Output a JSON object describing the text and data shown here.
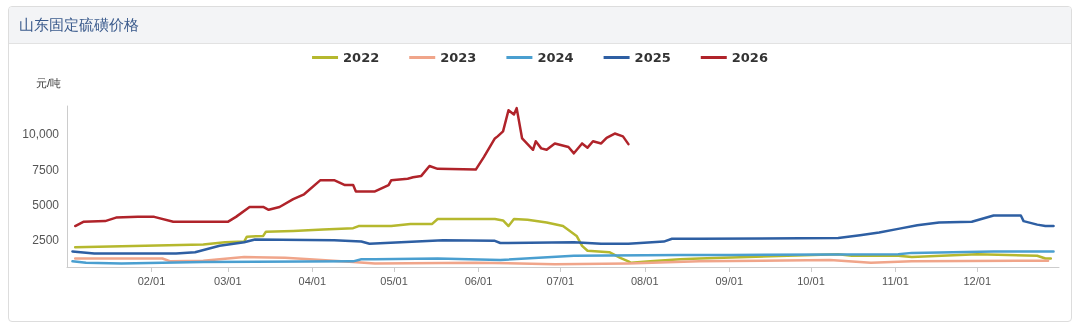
{
  "chart_data": {
    "type": "line",
    "title": "山东固定硫磺价格",
    "ylabel": "元/吨",
    "xlim": [
      "--01-01",
      "--12-31"
    ],
    "xticks": [
      {
        "value": "--02-01",
        "label": "02/01"
      },
      {
        "value": "--03-01",
        "label": "03/01"
      },
      {
        "value": "--04-01",
        "label": "04/01"
      },
      {
        "value": "--05-01",
        "label": "05/01"
      },
      {
        "value": "--06-01",
        "label": "06/01"
      },
      {
        "value": "--07-01",
        "label": "07/01"
      },
      {
        "value": "--08-01",
        "label": "08/01"
      },
      {
        "value": "--09-01",
        "label": "09/01"
      },
      {
        "value": "--10-01",
        "label": "10/01"
      },
      {
        "value": "--11-01",
        "label": "11/01"
      },
      {
        "value": "--12-01",
        "label": "12/01"
      }
    ],
    "ylim": [
      600,
      12000
    ],
    "yticks": [
      2500,
      5000,
      7500,
      {
        "value": 10000,
        "label": "10,000"
      }
    ],
    "grid": false,
    "legend": "top",
    "marker": "none",
    "line_style": "solid",
    "series": [
      {
        "name": "2022",
        "color": "#b5b82e",
        "x": [
          "--01-04",
          "--02-20",
          "--02-28",
          "--03-07",
          "--03-08",
          "--03-14",
          "--03-15",
          "--03-25",
          "--04-05",
          "--04-16",
          "--04-18",
          "--04-30",
          "--05-07",
          "--05-15",
          "--05-17",
          "--06-07",
          "--06-10",
          "--06-12",
          "--06-14",
          "--06-19",
          "--06-26",
          "--07-02",
          "--07-07",
          "--07-09",
          "--07-11",
          "--07-19",
          "--07-23",
          "--07-26",
          "--07-27",
          "--08-03",
          "--08-14",
          "--08-21",
          "--10-11",
          "--10-16",
          "--11-02",
          "--11-07",
          "--12-01",
          "--12-23",
          "--12-26",
          "--12-28"
        ],
        "values": [
          2000,
          2200,
          2350,
          2400,
          2750,
          2800,
          3100,
          3150,
          3250,
          3350,
          3500,
          3500,
          3650,
          3650,
          4000,
          4000,
          3900,
          3500,
          4000,
          3950,
          3750,
          3500,
          2800,
          2100,
          1750,
          1650,
          1250,
          1000,
          900,
          1000,
          1150,
          1200,
          1500,
          1400,
          1400,
          1300,
          1500,
          1400,
          1200,
          1200
        ]
      },
      {
        "name": "2023",
        "color": "#f0a58a",
        "x": [
          "--01-04",
          "--02-05",
          "--02-08",
          "--02-20",
          "--03-07",
          "--03-22",
          "--03-31",
          "--04-16",
          "--04-24",
          "--05-31",
          "--06-29",
          "--07-26",
          "--08-21",
          "--10-08",
          "--10-23",
          "--11-07",
          "--12-27"
        ],
        "values": [
          1200,
          1200,
          1000,
          1050,
          1300,
          1250,
          1150,
          950,
          850,
          900,
          800,
          850,
          1000,
          1100,
          900,
          1000,
          1050
        ]
      },
      {
        "name": "2024",
        "color": "#4a9fd0",
        "x": [
          "--01-03",
          "--01-08",
          "--01-21",
          "--02-20",
          "--04-16",
          "--04-19",
          "--04-24",
          "--05-17",
          "--06-09",
          "--07-06",
          "--08-14",
          "--09-01",
          "--11-02",
          "--11-07",
          "--12-07",
          "--12-29"
        ],
        "values": [
          1000,
          900,
          850,
          950,
          1000,
          1150,
          1150,
          1200,
          1100,
          1400,
          1450,
          1450,
          1500,
          1600,
          1700,
          1700
        ]
      },
      {
        "name": "2025",
        "color": "#2e5fa3",
        "x": [
          "--01-03",
          "--01-11",
          "--02-10",
          "--02-17",
          "--02-26",
          "--03-07",
          "--03-11",
          "--04-09",
          "--04-19",
          "--04-22",
          "--05-19",
          "--06-07",
          "--06-09",
          "--07-06",
          "--07-16",
          "--07-26",
          "--08-08",
          "--08-11",
          "--08-21",
          "--10-11",
          "--10-19",
          "--10-26",
          "--11-02",
          "--11-09",
          "--11-17",
          "--11-29",
          "--12-07",
          "--12-17",
          "--12-18",
          "--12-23",
          "--12-26",
          "--12-29"
        ],
        "values": [
          1700,
          1550,
          1550,
          1650,
          2100,
          2350,
          2550,
          2500,
          2400,
          2250,
          2500,
          2450,
          2300,
          2350,
          2250,
          2250,
          2400,
          2600,
          2600,
          2650,
          2850,
          3050,
          3300,
          3550,
          3750,
          3800,
          4250,
          4250,
          3850,
          3600,
          3500,
          3500
        ]
      },
      {
        "name": "2026",
        "color": "#b0232a",
        "x": [
          "--01-04",
          "--01-07",
          "--01-15",
          "--01-19",
          "--01-27",
          "--02-02",
          "--02-09",
          "--03-01",
          "--03-04",
          "--03-09",
          "--03-14",
          "--03-16",
          "--03-20",
          "--03-25",
          "--03-29",
          "--04-04",
          "--04-09",
          "--04-13",
          "--04-16",
          "--04-17",
          "--04-24",
          "--04-29",
          "--04-30",
          "--05-06",
          "--05-08",
          "--05-11",
          "--05-14",
          "--05-17",
          "--05-31",
          "--06-03",
          "--06-07",
          "--06-08",
          "--06-10",
          "--06-12",
          "--06-14",
          "--06-15",
          "--06-17",
          "--06-21",
          "--06-22",
          "--06-24",
          "--06-26",
          "--06-29",
          "--07-04",
          "--07-06",
          "--07-09",
          "--07-11",
          "--07-13",
          "--07-16",
          "--07-18",
          "--07-21",
          "--07-24",
          "--07-26"
        ],
        "values": [
          3500,
          3800,
          3850,
          4100,
          4150,
          4150,
          3800,
          3800,
          4150,
          4850,
          4850,
          4650,
          4850,
          5400,
          5750,
          6750,
          6750,
          6400,
          6400,
          5950,
          5950,
          6400,
          6750,
          6850,
          6950,
          7050,
          7750,
          7550,
          7500,
          8400,
          9700,
          9850,
          10200,
          11700,
          11400,
          11850,
          9700,
          8900,
          9500,
          9000,
          8900,
          9350,
          9100,
          8650,
          9350,
          9050,
          9500,
          9350,
          9750,
          10050,
          9850,
          9300
        ]
      }
    ]
  }
}
